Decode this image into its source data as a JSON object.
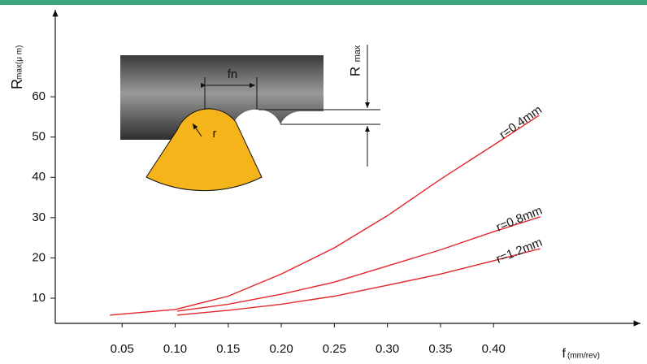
{
  "chart_data": {
    "type": "line",
    "y_label": "R",
    "y_label_sub": "max(μ m)",
    "x_label": "f",
    "x_label_sub": "(mm/rev)",
    "xlim": [
      -0.013,
      0.54
    ],
    "ylim": [
      3.75,
      82
    ],
    "xticks": [
      0.05,
      {
        "value": 0.1,
        "label": "0.10"
      },
      0.15,
      {
        "value": 0.2,
        "label": "0.20"
      },
      0.25,
      {
        "value": 0.3,
        "label": "0.30"
      },
      0.35,
      {
        "value": 0.4,
        "label": "0.40"
      }
    ],
    "yticks": [
      10,
      20,
      30,
      40,
      50,
      60
    ],
    "series": [
      {
        "name": "r=0.4mm",
        "color": "#e3262b",
        "x": [
          0.0385,
          0.1,
          0.15,
          0.2,
          0.25,
          0.3,
          0.35,
          0.4,
          0.443
        ],
        "values": [
          5.8,
          7.2,
          10.5,
          16,
          22.5,
          30.5,
          39.5,
          48,
          55.4
        ]
      },
      {
        "name": "r=0.8mm",
        "color": "#e3262b",
        "x": [
          0.102,
          0.15,
          0.2,
          0.25,
          0.3,
          0.35,
          0.4,
          0.444
        ],
        "values": [
          6.8,
          8.5,
          11,
          14,
          18,
          22,
          26.5,
          30.2
        ]
      },
      {
        "name": "r=1.2mm",
        "color": "#e3262b",
        "x": [
          0.102,
          0.15,
          0.2,
          0.25,
          0.3,
          0.35,
          0.4,
          0.444
        ],
        "values": [
          5.8,
          7,
          8.5,
          10.5,
          13.2,
          16,
          19.3,
          22.3
        ]
      }
    ],
    "annotations": [
      "fn",
      "r",
      "R",
      "max"
    ]
  }
}
